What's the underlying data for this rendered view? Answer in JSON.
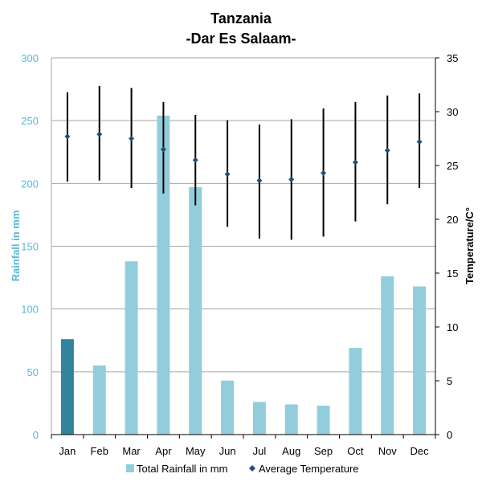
{
  "chart_data": {
    "type": "bar",
    "title": "Tanzania",
    "subtitle": "-Dar Es Salaam-",
    "categories": [
      "Jan",
      "Feb",
      "Mar",
      "Apr",
      "May",
      "Jun",
      "Jul",
      "Aug",
      "Sep",
      "Oct",
      "Nov",
      "Dec"
    ],
    "rainfall": {
      "name": "Total Rainfall in mm",
      "values": [
        76,
        55,
        138,
        254,
        197,
        43,
        26,
        24,
        23,
        69,
        126,
        118
      ],
      "color": "#92cddc",
      "highlight_color": "#31849b",
      "highlight_index": 0
    },
    "temperature": {
      "name": "Average Temperature",
      "avg": [
        27.7,
        27.9,
        27.5,
        26.5,
        25.5,
        24.2,
        23.6,
        23.7,
        24.3,
        25.3,
        26.4,
        27.2
      ],
      "max": [
        31.8,
        32.4,
        32.2,
        30.9,
        29.7,
        29.2,
        28.8,
        29.3,
        30.3,
        30.9,
        31.5,
        31.7
      ],
      "min": [
        23.5,
        23.6,
        22.9,
        22.4,
        21.3,
        19.3,
        18.2,
        18.1,
        18.4,
        19.8,
        21.4,
        22.9
      ],
      "marker_color": "#1f4e79",
      "bar_color": "#000000"
    },
    "y_left": {
      "label": "Rainfall in mm",
      "ylim": [
        0,
        300
      ],
      "ticks": [
        0,
        50,
        100,
        150,
        200,
        250,
        300
      ],
      "color": "#5bb8d6"
    },
    "y_right": {
      "label": "Temperature/C°",
      "ylim": [
        0,
        35
      ],
      "ticks": [
        0,
        5,
        10,
        15,
        20,
        25,
        30,
        35
      ],
      "color": "#000000"
    },
    "grid": true,
    "legend": {
      "placement": "bottom",
      "items": [
        "Total Rainfall in mm",
        "Average Temperature"
      ]
    }
  }
}
